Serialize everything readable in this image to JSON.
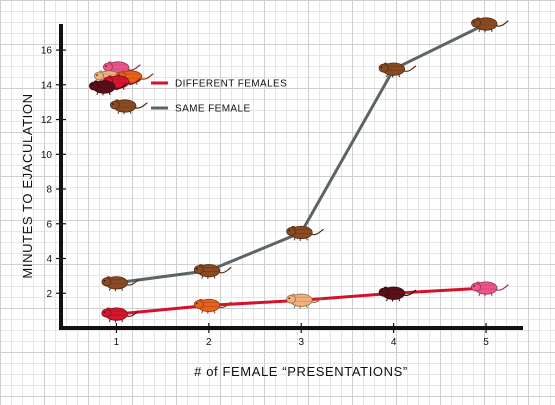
{
  "chart_data": {
    "type": "line",
    "xlabel": "# of FEMALE “PRESENTATIONS”",
    "ylabel": "MINUTES TO EJACULATION",
    "x": [
      1,
      2,
      3,
      4,
      5
    ],
    "xticks": [
      "1",
      "2",
      "3",
      "4",
      "5"
    ],
    "yticks": [
      "2",
      "4",
      "6",
      "8",
      "10",
      "12",
      "14",
      "16"
    ],
    "xlim": [
      0.4,
      5.4
    ],
    "ylim": [
      0,
      17.5
    ],
    "grid": true,
    "legend_position": "top-left",
    "series": [
      {
        "name": "DIFFERENT FEMALES",
        "color": "#d2142a",
        "values": [
          0.8,
          1.3,
          1.6,
          2.0,
          2.3
        ],
        "marker_colors": [
          "#d6172d",
          "#e8621c",
          "#f2b27d",
          "#5b0f19",
          "#f0558a"
        ]
      },
      {
        "name": "SAME FEMALE",
        "color": "#5b6466",
        "values": [
          2.6,
          3.3,
          5.5,
          14.9,
          17.5
        ],
        "marker_colors": [
          "#8a4a22",
          "#8a4a22",
          "#8a4a22",
          "#8a4a22",
          "#8a4a22"
        ]
      }
    ]
  },
  "icon": "rat-icon"
}
